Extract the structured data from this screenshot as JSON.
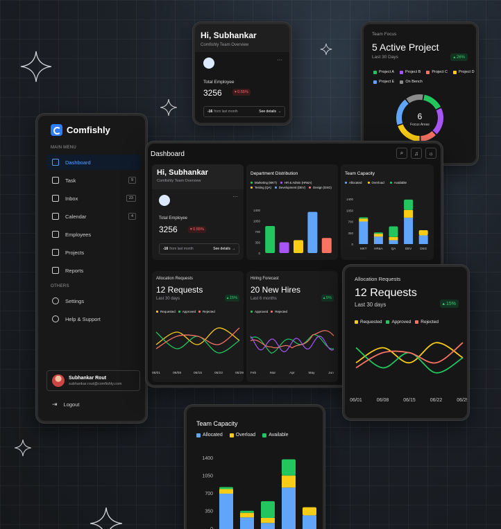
{
  "brand": "Comfishly",
  "sidebar": {
    "main_menu_label": "MAIN MENU",
    "others_label": "OTHERS",
    "items": [
      {
        "label": "Dashboard",
        "icon": "grid-icon"
      },
      {
        "label": "Task",
        "icon": "task-icon",
        "count": "9"
      },
      {
        "label": "Inbox",
        "icon": "inbox-icon",
        "count": "23"
      },
      {
        "label": "Calendar",
        "icon": "calendar-icon",
        "count": "4"
      },
      {
        "label": "Employees",
        "icon": "users-icon"
      },
      {
        "label": "Projects",
        "icon": "projects-icon"
      },
      {
        "label": "Reports",
        "icon": "reports-icon"
      }
    ],
    "others": [
      {
        "label": "Settings",
        "icon": "gear-icon"
      },
      {
        "label": "Help & Support",
        "icon": "phone-icon"
      }
    ],
    "user": {
      "name": "Subhankar Rout",
      "email": "subhankar.rout@comfishly.com"
    },
    "logout": "Logout"
  },
  "dashboard": {
    "title": "Dashboard"
  },
  "greeting": {
    "title": "Hi, Subhankar",
    "subtitle": "Comfishly Team Overview",
    "stat_label": "Total Employee",
    "stat_value": "3256",
    "stat_change": "▾ 0.55%",
    "footer_prefix": "-16",
    "footer_text": "from last month",
    "footer_link": "See details"
  },
  "team_focus": {
    "label": "Team Focus",
    "title": "5 Active Project",
    "period": "Last 30 Days",
    "change": "▴ 26%",
    "legend": [
      "Project A",
      "Project B",
      "Project C",
      "Project D",
      "Project E",
      "On Bench"
    ],
    "center_value": "6",
    "center_label": "Focus Areas",
    "colors": [
      "#22c55e",
      "#a855f7",
      "#f97362",
      "#facc15",
      "#60a5fa",
      "#8b8b8b"
    ]
  },
  "department": {
    "title": "Department Distribution",
    "legend": [
      "Marketing (MKT)",
      "HR & Admin (HR&A)",
      "Testing (QA)",
      "Development (DEV)",
      "Design (DSG)"
    ],
    "yticks": [
      "1400",
      "1050",
      "700",
      "350",
      "0"
    ]
  },
  "capacity_small": {
    "title": "Team Capacity",
    "legend": [
      "Allocated",
      "Overload",
      "Available"
    ],
    "yticks": [
      "1400",
      "1050",
      "700",
      "350",
      "0"
    ],
    "categories": [
      "MKT",
      "HR&A",
      "QA",
      "DEV",
      "DSG"
    ]
  },
  "allocation_small": {
    "label": "Allocation Requests",
    "title": "12 Requests",
    "period": "Last 30 days",
    "change": "▴ 15%",
    "legend": [
      "Requested",
      "Approved",
      "Rejected"
    ],
    "xticks": [
      "06/01",
      "06/08",
      "06/15",
      "06/22",
      "06/29"
    ]
  },
  "hiring": {
    "label": "Hiring Forecast",
    "title": "20 New Hires",
    "period": "Last 6 months",
    "change": "▴ 5%",
    "legend": [
      "Approved",
      "Rejected"
    ],
    "xticks": [
      "Feb",
      "Mar",
      "Apr",
      "May",
      "Jun"
    ]
  },
  "allocation_large": {
    "label": "Allocation Requests",
    "title": "12 Requests",
    "period": "Last 30 days",
    "change": "▴ 15%",
    "legend": [
      "Requested",
      "Approved",
      "Rejected"
    ],
    "xticks": [
      "06/01",
      "06/08",
      "06/15",
      "06/22",
      "06/29"
    ]
  },
  "capacity_large": {
    "title": "Team Capacity",
    "legend": [
      "Allocated",
      "Overload",
      "Available"
    ],
    "yticks": [
      "1400",
      "1050",
      "700",
      "350",
      "0"
    ]
  },
  "chart_data": [
    {
      "type": "pie",
      "title": "Team Focus",
      "categories": [
        "Project A",
        "Project B",
        "Project C",
        "Project D",
        "Project E",
        "On Bench"
      ],
      "values": [
        15,
        20,
        12,
        20,
        20,
        13
      ]
    },
    {
      "type": "bar",
      "title": "Department Distribution",
      "categories": [
        "MKT",
        "HR&A",
        "QA",
        "DEV",
        "DSG"
      ],
      "values": [
        880,
        350,
        420,
        1340,
        490
      ],
      "colors": [
        "#22c55e",
        "#a855f7",
        "#facc15",
        "#60a5fa",
        "#f97362"
      ],
      "ylim": [
        0,
        1400
      ]
    },
    {
      "type": "bar",
      "title": "Team Capacity",
      "categories": [
        "MKT",
        "HR&A",
        "QA",
        "DEV",
        "DSG"
      ],
      "series": [
        {
          "name": "Allocated",
          "values": [
            700,
            230,
            120,
            820,
            270
          ]
        },
        {
          "name": "Overload",
          "values": [
            90,
            90,
            100,
            240,
            160
          ]
        },
        {
          "name": "Available",
          "values": [
            40,
            40,
            330,
            320,
            0
          ]
        }
      ],
      "colors": [
        "#60a5fa",
        "#facc15",
        "#22c55e"
      ],
      "ylim": [
        0,
        1400
      ]
    },
    {
      "type": "line",
      "title": "Allocation Requests",
      "x": [
        "06/01",
        "06/08",
        "06/15",
        "06/22",
        "06/29"
      ],
      "series": [
        {
          "name": "Requested",
          "values": [
            2,
            3.5,
            2,
            4,
            2.5
          ]
        },
        {
          "name": "Approved",
          "values": [
            3.5,
            1.5,
            3,
            1,
            2.5
          ]
        },
        {
          "name": "Rejected",
          "values": [
            1.5,
            3,
            3,
            2,
            4
          ]
        }
      ],
      "colors": [
        "#facc15",
        "#22c55e",
        "#f97362"
      ]
    },
    {
      "type": "line",
      "title": "Hiring Forecast",
      "x": [
        "Feb",
        "Mar",
        "Apr",
        "May",
        "Jun"
      ],
      "series": [
        {
          "name": "Approved",
          "values": [
            3,
            1.5,
            2.5,
            3,
            2
          ]
        },
        {
          "name": "Rejected",
          "values": [
            2,
            2.5,
            1,
            4,
            3
          ]
        }
      ],
      "colors": [
        "#22c55e",
        "#f97362",
        "#a855f7"
      ]
    }
  ]
}
